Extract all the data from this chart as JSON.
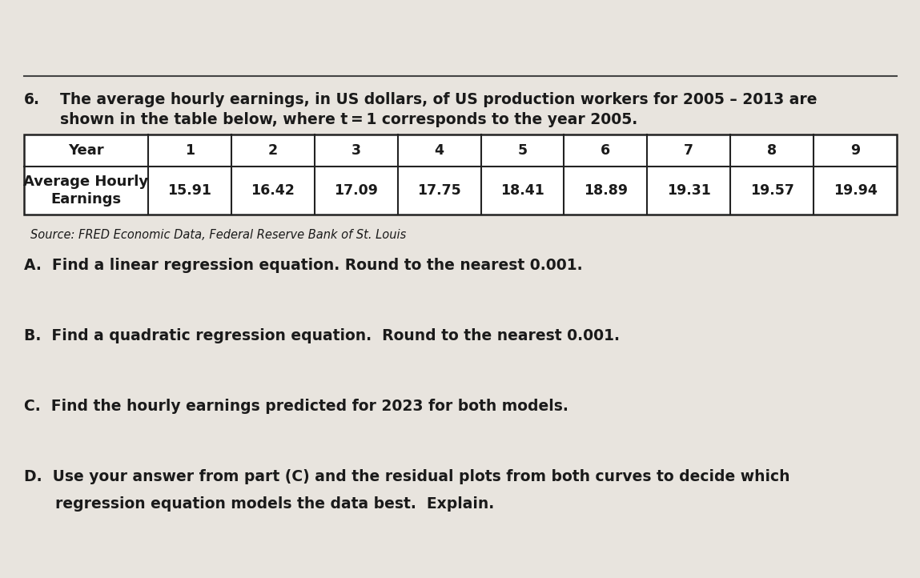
{
  "problem_number": "6.",
  "intro_text_line1": "The average hourly earnings, in US dollars, of US production workers for 2005 – 2013 are",
  "intro_text_line2": "shown in the table below, where t = 1 corresponds to the year 2005.",
  "table": {
    "col_header": "Year",
    "row_header": "Average Hourly\nEarnings",
    "years": [
      "1",
      "2",
      "3",
      "4",
      "5",
      "6",
      "7",
      "8",
      "9"
    ],
    "earnings": [
      "15.91",
      "16.42",
      "17.09",
      "17.75",
      "18.41",
      "18.89",
      "19.31",
      "19.57",
      "19.94"
    ]
  },
  "source_text": "Source: FRED Economic Data, Federal Reserve Bank of St. Louis",
  "part_A": "A.  Find a linear regression equation. Round to the nearest 0.001.",
  "part_B": "B.  Find a quadratic regression equation.  Round to the nearest 0.001.",
  "part_C": "C.  Find the hourly earnings predicted for 2023 for both models.",
  "part_D_line1": "D.  Use your answer from part (C) and the residual plots from both curves to decide which",
  "part_D_line2": "      regression equation models the data best.  Explain.",
  "bg_color": "#e8e4de",
  "table_bg": "#ffffff",
  "border_color": "#222222",
  "text_color": "#1a1a1a",
  "title_fontsize": 13.5,
  "body_fontsize": 13.5,
  "source_fontsize": 10.5,
  "table_header_fontsize": 13,
  "table_data_fontsize": 12.5
}
